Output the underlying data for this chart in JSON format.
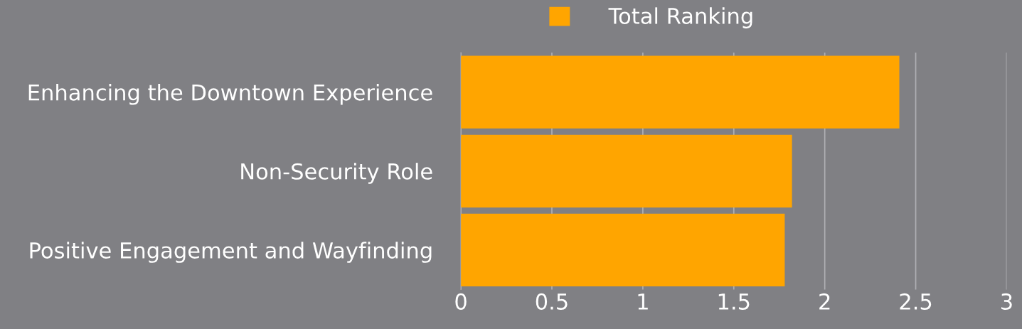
{
  "chart_data": {
    "type": "bar",
    "orientation": "horizontal",
    "categories": [
      "Enhancing the Downtown Experience",
      "Non-Security Role",
      "Positive Engagement and Wayfinding"
    ],
    "series": [
      {
        "name": "Total Ranking",
        "color": "#ffa500",
        "values": [
          2.41,
          1.82,
          1.78
        ]
      }
    ],
    "xlim": [
      0,
      3
    ],
    "xticks": [
      0,
      0.5,
      1,
      1.5,
      2,
      2.5,
      3
    ],
    "grid": "x",
    "legend": "top"
  }
}
